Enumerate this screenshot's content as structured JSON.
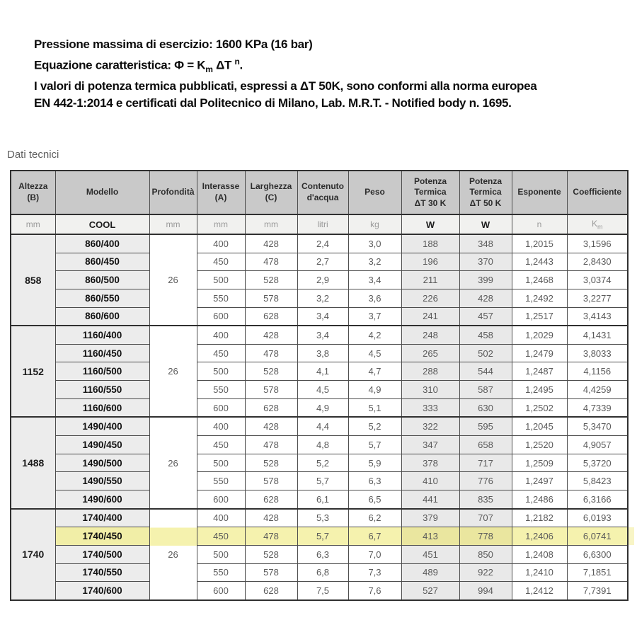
{
  "intro": {
    "line1": "Pressione massima di esercizio: 1600 KPa (16 bar)",
    "equation": {
      "pre": "Equazione caratteristica: Φ = K",
      "sub": "m",
      "mid": " ΔT ",
      "sup": "n",
      "post": "."
    },
    "line3": "I valori di potenza termica pubblicati, espressi a ΔT 50K, sono conformi alla norma europea",
    "line4": "EN 442-1:2014 e certificati dal Politecnico di Milano, Lab. M.R.T. - Notified body n. 1695."
  },
  "section_title": "Dati tecnici",
  "table": {
    "columns": [
      {
        "key": "altezza",
        "label": [
          "Altezza",
          "(B)"
        ],
        "unit": "mm"
      },
      {
        "key": "modello",
        "label": [
          "Modello"
        ],
        "unit": "COOL"
      },
      {
        "key": "profondita",
        "label": [
          "Profondità"
        ],
        "unit": "mm"
      },
      {
        "key": "interasse",
        "label": [
          "Interasse",
          "(A)"
        ],
        "unit": "mm"
      },
      {
        "key": "larghezza",
        "label": [
          "Larghezza",
          "(C)"
        ],
        "unit": "mm"
      },
      {
        "key": "contenuto",
        "label": [
          "Contenuto",
          "d'acqua"
        ],
        "unit": "litri"
      },
      {
        "key": "peso",
        "label": [
          "Peso"
        ],
        "unit": "kg"
      },
      {
        "key": "pot30",
        "label": [
          "Potenza",
          "Termica",
          "ΔT 30 K"
        ],
        "unit": "W"
      },
      {
        "key": "pot50",
        "label": [
          "Potenza",
          "Termica",
          "ΔT 50 K"
        ],
        "unit": "W"
      },
      {
        "key": "esponente",
        "label": [
          "Esponente"
        ],
        "unit": "n"
      },
      {
        "key": "coefficiente",
        "label": [
          "Coefficiente"
        ],
        "unit": "Km"
      }
    ],
    "km_unit": {
      "base": "K",
      "sub": "m"
    },
    "highlight_color": "#f5f2ae",
    "groups": [
      {
        "altezza": "858",
        "profondita": "26",
        "rows": [
          {
            "modello": "860/400",
            "interasse": "400",
            "larghezza": "428",
            "contenuto": "2,4",
            "peso": "3,0",
            "pot30": "188",
            "pot50": "348",
            "esponente": "1,2015",
            "coefficiente": "3,1596",
            "highlight": false
          },
          {
            "modello": "860/450",
            "interasse": "450",
            "larghezza": "478",
            "contenuto": "2,7",
            "peso": "3,2",
            "pot30": "196",
            "pot50": "370",
            "esponente": "1,2443",
            "coefficiente": "2,8430",
            "highlight": false
          },
          {
            "modello": "860/500",
            "interasse": "500",
            "larghezza": "528",
            "contenuto": "2,9",
            "peso": "3,4",
            "pot30": "211",
            "pot50": "399",
            "esponente": "1,2468",
            "coefficiente": "3,0374",
            "highlight": false
          },
          {
            "modello": "860/550",
            "interasse": "550",
            "larghezza": "578",
            "contenuto": "3,2",
            "peso": "3,6",
            "pot30": "226",
            "pot50": "428",
            "esponente": "1,2492",
            "coefficiente": "3,2277",
            "highlight": false
          },
          {
            "modello": "860/600",
            "interasse": "600",
            "larghezza": "628",
            "contenuto": "3,4",
            "peso": "3,7",
            "pot30": "241",
            "pot50": "457",
            "esponente": "1,2517",
            "coefficiente": "3,4143",
            "highlight": false
          }
        ]
      },
      {
        "altezza": "1152",
        "profondita": "26",
        "rows": [
          {
            "modello": "1160/400",
            "interasse": "400",
            "larghezza": "428",
            "contenuto": "3,4",
            "peso": "4,2",
            "pot30": "248",
            "pot50": "458",
            "esponente": "1,2029",
            "coefficiente": "4,1431",
            "highlight": false
          },
          {
            "modello": "1160/450",
            "interasse": "450",
            "larghezza": "478",
            "contenuto": "3,8",
            "peso": "4,5",
            "pot30": "265",
            "pot50": "502",
            "esponente": "1,2479",
            "coefficiente": "3,8033",
            "highlight": false
          },
          {
            "modello": "1160/500",
            "interasse": "500",
            "larghezza": "528",
            "contenuto": "4,1",
            "peso": "4,7",
            "pot30": "288",
            "pot50": "544",
            "esponente": "1,2487",
            "coefficiente": "4,1156",
            "highlight": false
          },
          {
            "modello": "1160/550",
            "interasse": "550",
            "larghezza": "578",
            "contenuto": "4,5",
            "peso": "4,9",
            "pot30": "310",
            "pot50": "587",
            "esponente": "1,2495",
            "coefficiente": "4,4259",
            "highlight": false
          },
          {
            "modello": "1160/600",
            "interasse": "600",
            "larghezza": "628",
            "contenuto": "4,9",
            "peso": "5,1",
            "pot30": "333",
            "pot50": "630",
            "esponente": "1,2502",
            "coefficiente": "4,7339",
            "highlight": false
          }
        ]
      },
      {
        "altezza": "1488",
        "profondita": "26",
        "rows": [
          {
            "modello": "1490/400",
            "interasse": "400",
            "larghezza": "428",
            "contenuto": "4,4",
            "peso": "5,2",
            "pot30": "322",
            "pot50": "595",
            "esponente": "1,2045",
            "coefficiente": "5,3470",
            "highlight": false
          },
          {
            "modello": "1490/450",
            "interasse": "450",
            "larghezza": "478",
            "contenuto": "4,8",
            "peso": "5,7",
            "pot30": "347",
            "pot50": "658",
            "esponente": "1,2520",
            "coefficiente": "4,9057",
            "highlight": false
          },
          {
            "modello": "1490/500",
            "interasse": "500",
            "larghezza": "528",
            "contenuto": "5,2",
            "peso": "5,9",
            "pot30": "378",
            "pot50": "717",
            "esponente": "1,2509",
            "coefficiente": "5,3720",
            "highlight": false
          },
          {
            "modello": "1490/550",
            "interasse": "550",
            "larghezza": "578",
            "contenuto": "5,7",
            "peso": "6,3",
            "pot30": "410",
            "pot50": "776",
            "esponente": "1,2497",
            "coefficiente": "5,8423",
            "highlight": false
          },
          {
            "modello": "1490/600",
            "interasse": "600",
            "larghezza": "628",
            "contenuto": "6,1",
            "peso": "6,5",
            "pot30": "441",
            "pot50": "835",
            "esponente": "1,2486",
            "coefficiente": "6,3166",
            "highlight": false
          }
        ]
      },
      {
        "altezza": "1740",
        "profondita": "26",
        "rows": [
          {
            "modello": "1740/400",
            "interasse": "400",
            "larghezza": "428",
            "contenuto": "5,3",
            "peso": "6,2",
            "pot30": "379",
            "pot50": "707",
            "esponente": "1,2182",
            "coefficiente": "6,0193",
            "highlight": false
          },
          {
            "modello": "1740/450",
            "interasse": "450",
            "larghezza": "478",
            "contenuto": "5,7",
            "peso": "6,7",
            "pot30": "413",
            "pot50": "778",
            "esponente": "1,2406",
            "coefficiente": "6,0741",
            "highlight": true
          },
          {
            "modello": "1740/500",
            "interasse": "500",
            "larghezza": "528",
            "contenuto": "6,3",
            "peso": "7,0",
            "pot30": "451",
            "pot50": "850",
            "esponente": "1,2408",
            "coefficiente": "6,6300",
            "highlight": false
          },
          {
            "modello": "1740/550",
            "interasse": "550",
            "larghezza": "578",
            "contenuto": "6,8",
            "peso": "7,3",
            "pot30": "489",
            "pot50": "922",
            "esponente": "1,2410",
            "coefficiente": "7,1851",
            "highlight": false
          },
          {
            "modello": "1740/600",
            "interasse": "600",
            "larghezza": "628",
            "contenuto": "7,5",
            "peso": "7,6",
            "pot30": "527",
            "pot50": "994",
            "esponente": "1,2412",
            "coefficiente": "7,7391",
            "highlight": false
          }
        ]
      }
    ]
  }
}
